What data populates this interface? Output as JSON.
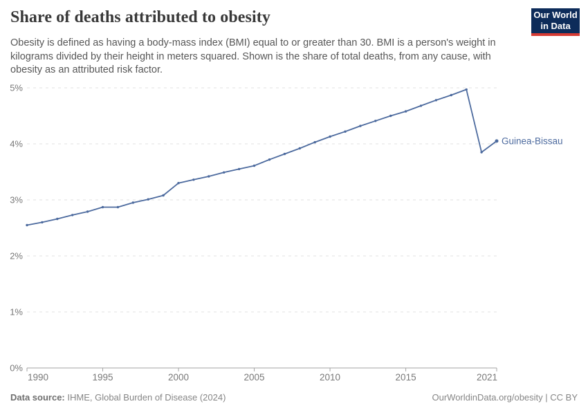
{
  "header": {
    "title": "Share of deaths attributed to obesity",
    "subtitle": "Obesity is defined as having a body-mass index (BMI) equal to or greater than 30. BMI is a person's weight in kilograms divided by their height in meters squared. Shown is the share of total deaths, from any cause, with obesity as an attributed risk factor.",
    "logo": {
      "line1": "Our World",
      "line2": "in Data",
      "bg_color": "#0d2c5a",
      "accent_color": "#d63b34"
    }
  },
  "chart_data": {
    "type": "line",
    "title": "Share of deaths attributed to obesity",
    "xlabel": "",
    "ylabel": "",
    "xlim": [
      1990,
      2021
    ],
    "ylim": [
      0,
      5
    ],
    "grid": "horizontal-dashed",
    "legend_position": "end-of-line-label",
    "x": [
      1990,
      1991,
      1992,
      1993,
      1994,
      1995,
      1996,
      1997,
      1998,
      1999,
      2000,
      2001,
      2002,
      2003,
      2004,
      2005,
      2006,
      2007,
      2008,
      2009,
      2010,
      2011,
      2012,
      2013,
      2014,
      2015,
      2016,
      2017,
      2018,
      2019,
      2020,
      2021
    ],
    "series": [
      {
        "name": "Guinea-Bissau",
        "color": "#4c6a9e",
        "values": [
          2.55,
          2.6,
          2.66,
          2.73,
          2.79,
          2.87,
          2.87,
          2.95,
          3.01,
          3.08,
          3.3,
          3.36,
          3.42,
          3.49,
          3.55,
          3.61,
          3.72,
          3.82,
          3.92,
          4.03,
          4.13,
          4.22,
          4.32,
          4.41,
          4.5,
          4.58,
          4.68,
          4.78,
          4.87,
          4.97,
          3.85,
          4.05
        ]
      }
    ],
    "x_ticks": [
      {
        "value": 1990,
        "label": "1990"
      },
      {
        "value": 1995,
        "label": "1995"
      },
      {
        "value": 2000,
        "label": "2000"
      },
      {
        "value": 2005,
        "label": "2005"
      },
      {
        "value": 2010,
        "label": "2010"
      },
      {
        "value": 2015,
        "label": "2015"
      },
      {
        "value": 2021,
        "label": "2021"
      }
    ],
    "y_ticks": [
      {
        "value": 0,
        "label": "0%"
      },
      {
        "value": 1,
        "label": "1%"
      },
      {
        "value": 2,
        "label": "2%"
      },
      {
        "value": 3,
        "label": "3%"
      },
      {
        "value": 4,
        "label": "4%"
      },
      {
        "value": 5,
        "label": "5%"
      }
    ],
    "colors": {
      "gridline": "#e0e0e0",
      "axis": "#a3a3a3",
      "tick_label": "#777777"
    }
  },
  "footer": {
    "datasource_label": "Data source:",
    "datasource_value": "IHME, Global Burden of Disease (2024)",
    "credit": "OurWorldinData.org/obesity | CC BY"
  }
}
